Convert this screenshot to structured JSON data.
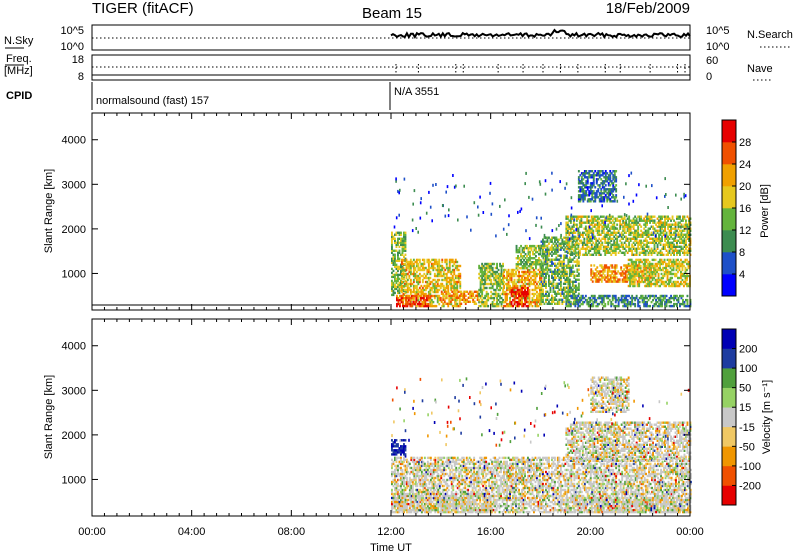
{
  "header": {
    "radar": "TIGER (fitACF)",
    "beam": "Beam 15",
    "date": "18/Feb/2009"
  },
  "top_panels": {
    "nsky_label": "N.Sky",
    "nsky_ticks": [
      "10^5",
      "10^0"
    ],
    "nsearch_label": "N.Search",
    "nsearch_ticks": [
      "10^5",
      "10^0"
    ],
    "freq_label_line1": "Freq.",
    "freq_label_line2": "[MHz]",
    "freq_ticks": [
      "18",
      "8"
    ],
    "nave_label": "Nave",
    "nave_ticks": [
      "60",
      "0"
    ],
    "cpid_label": "CPID",
    "cpid_segments": [
      "normalsound (fast) 157",
      "N/A 3551"
    ]
  },
  "colors": {
    "power_scale": [
      "#0000ff",
      "#1e50c8",
      "#3c8c50",
      "#64b43c",
      "#e6c81e",
      "#f0a000",
      "#f05000",
      "#e60000"
    ],
    "velocity_scale": [
      "#e60000",
      "#f05000",
      "#f09600",
      "#f0c864",
      "#c8c8c8",
      "#96d264",
      "#50a03c",
      "#1e3ca0",
      "#0000b4"
    ]
  },
  "chart_data": [
    {
      "type": "heatmap",
      "name": "power",
      "xlabel": "",
      "ylabel": "Slant Range [km]",
      "x_ticks": [
        "00:00",
        "04:00",
        "08:00",
        "12:00",
        "16:00",
        "20:00",
        "00:00"
      ],
      "y_ticks": [
        1000,
        2000,
        3000,
        4000
      ],
      "ylim": [
        180,
        4600
      ],
      "xlim_hours": [
        0,
        24
      ],
      "colorbar_label": "Power [dB]",
      "colorbar_ticks": [
        4,
        8,
        12,
        16,
        20,
        24,
        28
      ],
      "colorbar_range": [
        0,
        32
      ],
      "data_start_hour": 12,
      "echo_regions": [
        {
          "t0": 12.0,
          "t1": 12.6,
          "r0": 500,
          "r1": 1900,
          "level": 0.45
        },
        {
          "t0": 12.4,
          "t1": 14.8,
          "r0": 250,
          "r1": 1300,
          "level": 0.6
        },
        {
          "t0": 12.2,
          "t1": 13.5,
          "r0": 250,
          "r1": 500,
          "level": 0.85
        },
        {
          "t0": 14.0,
          "t1": 15.5,
          "r0": 300,
          "r1": 600,
          "level": 0.7
        },
        {
          "t0": 15.5,
          "t1": 16.5,
          "r0": 250,
          "r1": 1200,
          "level": 0.45
        },
        {
          "t0": 16.5,
          "t1": 18.0,
          "r0": 250,
          "r1": 1100,
          "level": 0.65
        },
        {
          "t0": 16.8,
          "t1": 17.5,
          "r0": 250,
          "r1": 700,
          "level": 0.95
        },
        {
          "t0": 17.0,
          "t1": 18.2,
          "r0": 1100,
          "r1": 1600,
          "level": 0.45
        },
        {
          "t0": 18.0,
          "t1": 19.5,
          "r0": 300,
          "r1": 1800,
          "level": 0.4
        },
        {
          "t0": 19.0,
          "t1": 24.0,
          "r0": 1400,
          "r1": 2300,
          "level": 0.5
        },
        {
          "t0": 20.0,
          "t1": 22.5,
          "r0": 800,
          "r1": 1200,
          "level": 0.7
        },
        {
          "t0": 21.5,
          "t1": 24.0,
          "r0": 700,
          "r1": 1300,
          "level": 0.55
        },
        {
          "t0": 19.0,
          "t1": 24.0,
          "r0": 250,
          "r1": 500,
          "level": 0.3
        },
        {
          "t0": 19.5,
          "t1": 21.0,
          "r0": 2600,
          "r1": 3300,
          "level": 0.25
        }
      ]
    },
    {
      "type": "heatmap",
      "name": "velocity",
      "xlabel": "Time UT",
      "ylabel": "Slant Range [km]",
      "x_ticks": [
        "00:00",
        "04:00",
        "08:00",
        "12:00",
        "16:00",
        "20:00",
        "00:00"
      ],
      "y_ticks": [
        1000,
        2000,
        3000,
        4000
      ],
      "ylim": [
        180,
        4600
      ],
      "xlim_hours": [
        0,
        24
      ],
      "colorbar_label": "Velocity [m s⁻¹]",
      "colorbar_ticks": [
        -200,
        -100,
        -50,
        -15,
        15,
        50,
        100,
        200
      ],
      "data_start_hour": 12,
      "echo_regions": [
        {
          "t0": 12.0,
          "t1": 12.6,
          "r0": 1500,
          "r1": 1900,
          "level": 0.9
        },
        {
          "t0": 12.0,
          "t1": 24.0,
          "r0": 250,
          "r1": 1500,
          "level": 0.5
        },
        {
          "t0": 12.0,
          "t1": 16.0,
          "r0": 250,
          "r1": 700,
          "level": 0.3
        },
        {
          "t0": 19.0,
          "t1": 24.0,
          "r0": 1400,
          "r1": 2300,
          "level": 0.5
        },
        {
          "t0": 20.0,
          "t1": 21.5,
          "r0": 2500,
          "r1": 3300,
          "level": 0.7
        },
        {
          "t0": 19.0,
          "t1": 24.0,
          "r0": 250,
          "r1": 600,
          "level": 0.3
        }
      ]
    }
  ]
}
